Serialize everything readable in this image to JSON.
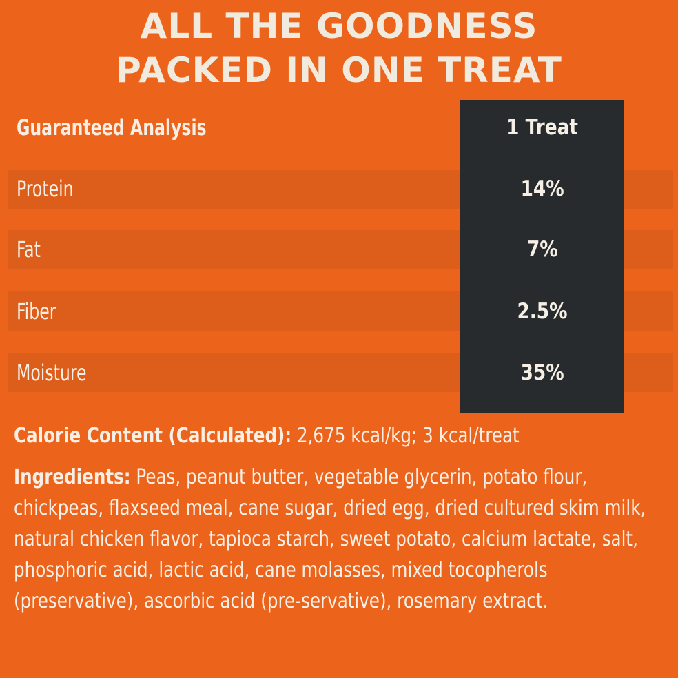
{
  "headline": {
    "line1": "ALL THE GOODNESS",
    "line2": "PACKED IN ONE TREAT"
  },
  "analysis": {
    "header_label": "Guaranteed Analysis",
    "header_value": "1 Treat",
    "rows": [
      {
        "label": "Protein",
        "value": "14%"
      },
      {
        "label": "Fat",
        "value": "7%"
      },
      {
        "label": "Fiber",
        "value": "2.5%"
      },
      {
        "label": "Moisture",
        "value": "35%"
      }
    ]
  },
  "calorie": {
    "label": "Calorie Content (Calculated):",
    "text": " 2,675 kcal/kg; 3 kcal/treat"
  },
  "ingredients": {
    "label": "Ingredients:",
    "text": " Peas, peanut butter, vegetable glycerin, potato flour, chickpeas, flaxseed meal, cane sugar, dried egg, dried cultured skim milk, natural chicken flavor, tapioca starch, sweet potato, calcium lactate, salt, phosphoric acid, lactic acid, cane molasses, mixed tocopherols (preservative), ascorbic acid (pre-servative), rosemary extract."
  },
  "colors": {
    "background": "#ec641b",
    "row_band": "#dd5d1a",
    "value_column": "#272b2d",
    "text": "#f6efe6"
  }
}
